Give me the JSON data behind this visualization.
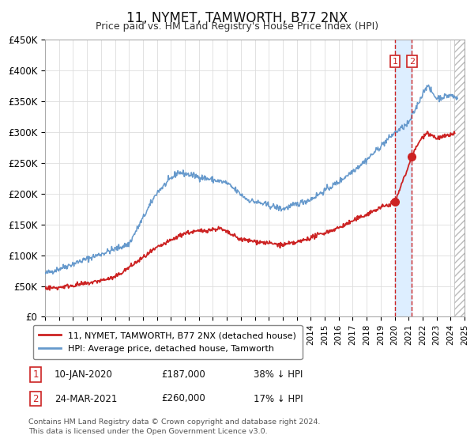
{
  "title": "11, NYMET, TAMWORTH, B77 2NX",
  "subtitle": "Price paid vs. HM Land Registry's House Price Index (HPI)",
  "ylim": [
    0,
    450000
  ],
  "xlim_start": 1995.0,
  "xlim_end": 2025.0,
  "yticks": [
    0,
    50000,
    100000,
    150000,
    200000,
    250000,
    300000,
    350000,
    400000,
    450000
  ],
  "ytick_labels": [
    "£0",
    "£50K",
    "£100K",
    "£150K",
    "£200K",
    "£250K",
    "£300K",
    "£350K",
    "£400K",
    "£450K"
  ],
  "hpi_color": "#6699cc",
  "price_color": "#cc2222",
  "vline_color": "#cc2222",
  "shade_color": "#ddeeff",
  "hatch_color": "#cccccc",
  "event1_x": 2020.03,
  "event1_y": 187000,
  "event2_x": 2021.23,
  "event2_y": 260000,
  "hatch_start": 2024.25,
  "legend_label_price": "11, NYMET, TAMWORTH, B77 2NX (detached house)",
  "legend_label_hpi": "HPI: Average price, detached house, Tamworth",
  "table_row1": [
    "1",
    "10-JAN-2020",
    "£187,000",
    "38% ↓ HPI"
  ],
  "table_row2": [
    "2",
    "24-MAR-2021",
    "£260,000",
    "17% ↓ HPI"
  ],
  "footer": "Contains HM Land Registry data © Crown copyright and database right 2024.\nThis data is licensed under the Open Government Licence v3.0.",
  "background_color": "#ffffff",
  "grid_color": "#dddddd"
}
